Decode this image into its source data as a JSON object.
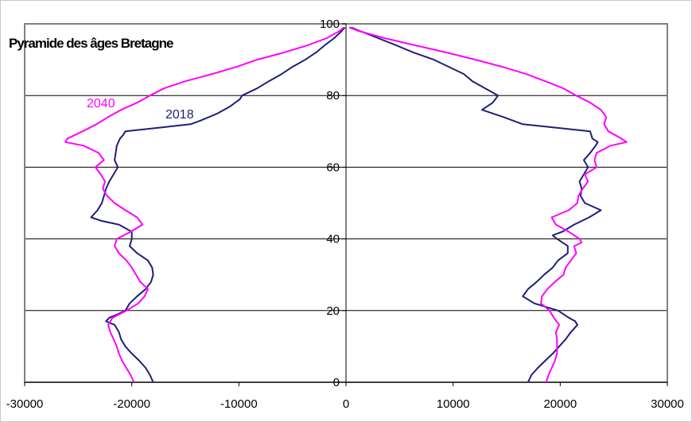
{
  "chart_data": {
    "type": "line",
    "title": "Pyramide des âges Bretagne",
    "xlim": [
      -30000,
      30000
    ],
    "ylim": [
      0,
      100
    ],
    "x_ticks": [
      "-30000",
      "-20000",
      "-10000",
      "0",
      "10000",
      "20000",
      "30000"
    ],
    "y_ticks": [
      "0",
      "20",
      "40",
      "60",
      "80",
      "100"
    ],
    "grid": "horizontal",
    "colors": {
      "series_2018": "#1f1f7a",
      "series_2040": "#ff00ff",
      "plot_border": "#808080",
      "grid": "#000000"
    },
    "series": [
      {
        "name": "2018",
        "color": "#1f1f7a",
        "left": [
          [
            0,
            -18000
          ],
          [
            2,
            -18300
          ],
          [
            4,
            -18700
          ],
          [
            6,
            -19300
          ],
          [
            8,
            -20000
          ],
          [
            10,
            -20600
          ],
          [
            12,
            -21000
          ],
          [
            14,
            -21200
          ],
          [
            16,
            -21600
          ],
          [
            17,
            -22400
          ],
          [
            18,
            -22100
          ],
          [
            19,
            -21300
          ],
          [
            20,
            -20600
          ],
          [
            22,
            -20200
          ],
          [
            24,
            -19500
          ],
          [
            26,
            -18700
          ],
          [
            28,
            -18200
          ],
          [
            30,
            -18000
          ],
          [
            32,
            -18100
          ],
          [
            34,
            -18500
          ],
          [
            36,
            -19500
          ],
          [
            38,
            -20200
          ],
          [
            40,
            -20000
          ],
          [
            42,
            -20000
          ],
          [
            44,
            -21200
          ],
          [
            45,
            -22800
          ],
          [
            46,
            -23800
          ],
          [
            48,
            -23200
          ],
          [
            50,
            -22800
          ],
          [
            52,
            -22600
          ],
          [
            54,
            -22400
          ],
          [
            56,
            -22100
          ],
          [
            58,
            -21700
          ],
          [
            60,
            -21300
          ],
          [
            62,
            -21600
          ],
          [
            64,
            -21500
          ],
          [
            66,
            -21400
          ],
          [
            68,
            -21100
          ],
          [
            69,
            -20800
          ],
          [
            70,
            -20600
          ],
          [
            71,
            -17500
          ],
          [
            72,
            -14500
          ],
          [
            73,
            -13600
          ],
          [
            75,
            -12000
          ],
          [
            77,
            -10800
          ],
          [
            79,
            -9900
          ],
          [
            80,
            -9700
          ],
          [
            82,
            -8300
          ],
          [
            84,
            -7200
          ],
          [
            86,
            -6000
          ],
          [
            88,
            -5000
          ],
          [
            90,
            -3800
          ],
          [
            92,
            -2800
          ],
          [
            94,
            -2000
          ],
          [
            96,
            -1100
          ],
          [
            98,
            -400
          ],
          [
            99,
            -100
          ]
        ],
        "right": [
          [
            0,
            17000
          ],
          [
            2,
            17300
          ],
          [
            4,
            17900
          ],
          [
            6,
            18600
          ],
          [
            8,
            19300
          ],
          [
            10,
            19900
          ],
          [
            12,
            20500
          ],
          [
            14,
            21000
          ],
          [
            16,
            21600
          ],
          [
            17,
            21400
          ],
          [
            18,
            20800
          ],
          [
            20,
            19800
          ],
          [
            22,
            17600
          ],
          [
            24,
            16500
          ],
          [
            26,
            17000
          ],
          [
            28,
            17800
          ],
          [
            30,
            18500
          ],
          [
            32,
            19300
          ],
          [
            34,
            19800
          ],
          [
            36,
            20700
          ],
          [
            38,
            20700
          ],
          [
            40,
            19700
          ],
          [
            41,
            19300
          ],
          [
            42,
            20200
          ],
          [
            44,
            21300
          ],
          [
            46,
            22700
          ],
          [
            48,
            23800
          ],
          [
            50,
            22300
          ],
          [
            52,
            21900
          ],
          [
            54,
            22000
          ],
          [
            56,
            21800
          ],
          [
            58,
            22200
          ],
          [
            60,
            22600
          ],
          [
            62,
            22200
          ],
          [
            64,
            22800
          ],
          [
            66,
            23300
          ],
          [
            67,
            23500
          ],
          [
            68,
            23000
          ],
          [
            70,
            22800
          ],
          [
            72,
            16500
          ],
          [
            74,
            14700
          ],
          [
            76,
            12700
          ],
          [
            78,
            13700
          ],
          [
            80,
            14200
          ],
          [
            82,
            13000
          ],
          [
            84,
            11800
          ],
          [
            86,
            11000
          ],
          [
            88,
            9600
          ],
          [
            90,
            8200
          ],
          [
            92,
            6300
          ],
          [
            94,
            4700
          ],
          [
            96,
            3000
          ],
          [
            98,
            1300
          ],
          [
            99,
            500
          ]
        ]
      },
      {
        "name": "2040",
        "color": "#ff00ff",
        "left": [
          [
            0,
            -19800
          ],
          [
            2,
            -20100
          ],
          [
            4,
            -20500
          ],
          [
            6,
            -20900
          ],
          [
            8,
            -21200
          ],
          [
            10,
            -21400
          ],
          [
            12,
            -21700
          ],
          [
            14,
            -22000
          ],
          [
            16,
            -22200
          ],
          [
            18,
            -21800
          ],
          [
            20,
            -20500
          ],
          [
            22,
            -19400
          ],
          [
            24,
            -18800
          ],
          [
            26,
            -18500
          ],
          [
            28,
            -19200
          ],
          [
            30,
            -19600
          ],
          [
            32,
            -20000
          ],
          [
            34,
            -20500
          ],
          [
            36,
            -21200
          ],
          [
            38,
            -21600
          ],
          [
            40,
            -21400
          ],
          [
            42,
            -20100
          ],
          [
            44,
            -19000
          ],
          [
            46,
            -19500
          ],
          [
            48,
            -20600
          ],
          [
            50,
            -21600
          ],
          [
            52,
            -22300
          ],
          [
            54,
            -22700
          ],
          [
            56,
            -22500
          ],
          [
            58,
            -22900
          ],
          [
            60,
            -23400
          ],
          [
            62,
            -22600
          ],
          [
            64,
            -23100
          ],
          [
            66,
            -24500
          ],
          [
            67,
            -26200
          ],
          [
            68,
            -26000
          ],
          [
            70,
            -24600
          ],
          [
            72,
            -23300
          ],
          [
            74,
            -22200
          ],
          [
            76,
            -21000
          ],
          [
            78,
            -19500
          ],
          [
            80,
            -18300
          ],
          [
            82,
            -17000
          ],
          [
            84,
            -15000
          ],
          [
            86,
            -12500
          ],
          [
            88,
            -10200
          ],
          [
            90,
            -8300
          ],
          [
            92,
            -5800
          ],
          [
            94,
            -3600
          ],
          [
            96,
            -1800
          ],
          [
            98,
            -600
          ],
          [
            99,
            -200
          ]
        ],
        "right": [
          [
            0,
            18700
          ],
          [
            2,
            18900
          ],
          [
            4,
            19200
          ],
          [
            6,
            19500
          ],
          [
            8,
            19700
          ],
          [
            10,
            19700
          ],
          [
            12,
            19700
          ],
          [
            14,
            19600
          ],
          [
            16,
            19900
          ],
          [
            18,
            19400
          ],
          [
            20,
            19000
          ],
          [
            22,
            18200
          ],
          [
            24,
            18300
          ],
          [
            26,
            18800
          ],
          [
            28,
            19500
          ],
          [
            30,
            20300
          ],
          [
            32,
            20500
          ],
          [
            34,
            21000
          ],
          [
            36,
            21500
          ],
          [
            38,
            21300
          ],
          [
            39,
            22000
          ],
          [
            40,
            21800
          ],
          [
            42,
            20800
          ],
          [
            44,
            19600
          ],
          [
            46,
            19200
          ],
          [
            48,
            20800
          ],
          [
            50,
            21600
          ],
          [
            52,
            21700
          ],
          [
            54,
            22100
          ],
          [
            56,
            22600
          ],
          [
            58,
            22300
          ],
          [
            60,
            23400
          ],
          [
            62,
            23200
          ],
          [
            64,
            23400
          ],
          [
            66,
            24700
          ],
          [
            67,
            26200
          ],
          [
            68,
            25700
          ],
          [
            70,
            24500
          ],
          [
            72,
            24100
          ],
          [
            74,
            24300
          ],
          [
            76,
            23800
          ],
          [
            78,
            22800
          ],
          [
            80,
            21500
          ],
          [
            82,
            20300
          ],
          [
            84,
            18600
          ],
          [
            86,
            16800
          ],
          [
            88,
            14600
          ],
          [
            90,
            12100
          ],
          [
            92,
            9400
          ],
          [
            94,
            6500
          ],
          [
            96,
            3600
          ],
          [
            98,
            1200
          ],
          [
            99,
            300
          ]
        ]
      }
    ]
  }
}
